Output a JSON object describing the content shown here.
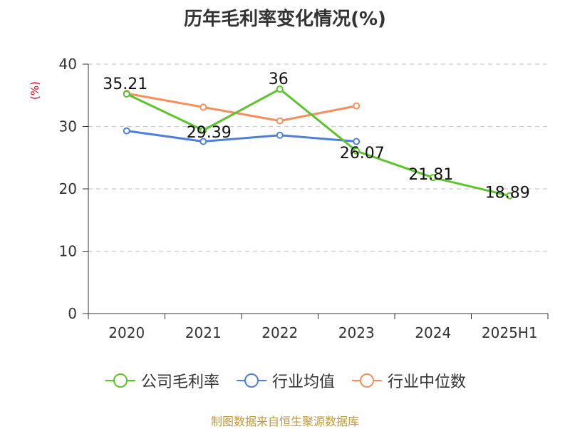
{
  "title": "历年毛利率变化情况(%)",
  "source": "制图数据来自恒生聚源数据库",
  "colors": {
    "company": "#5bc42a",
    "industry_avg": "#4f7fd6",
    "industry_median": "#f58f5e",
    "grid": "#cccccc",
    "axis": "#333333",
    "ylabel": "#e5001c"
  },
  "chart_data": {
    "type": "line",
    "title": "历年毛利率变化情况(%)",
    "xlabel": "",
    "ylabel": "(%)",
    "categories": [
      "2020",
      "2021",
      "2022",
      "2023",
      "2024",
      "2025H1"
    ],
    "ylim": [
      0,
      40
    ],
    "yticks": [
      0,
      10,
      20,
      30,
      40
    ],
    "grid": true,
    "legend_position": "bottom",
    "series": [
      {
        "name": "公司毛利率",
        "color": "#5bc42a",
        "values": [
          35.21,
          29.39,
          36,
          26.07,
          21.81,
          18.89
        ],
        "labels": [
          "35.21",
          "29.39",
          "36",
          "26.07",
          "21.81",
          "18.89"
        ]
      },
      {
        "name": "行业均值",
        "color": "#4f7fd6",
        "values": [
          29.3,
          27.6,
          28.6,
          27.6,
          null,
          null
        ]
      },
      {
        "name": "行业中位数",
        "color": "#f58f5e",
        "values": [
          35.3,
          33.1,
          30.9,
          33.3,
          null,
          null
        ]
      }
    ]
  }
}
